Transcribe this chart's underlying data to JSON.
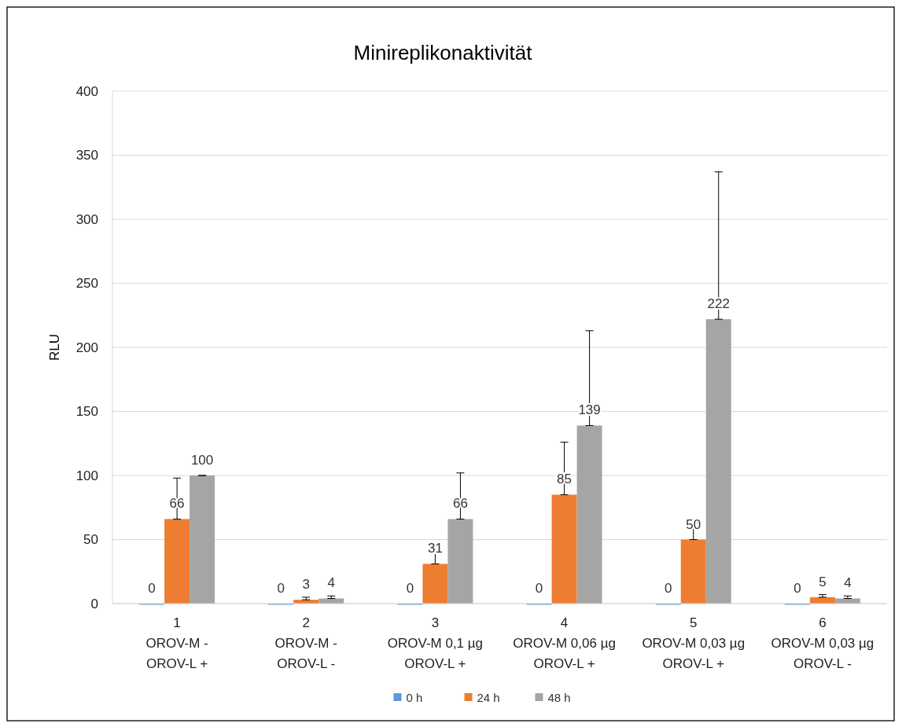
{
  "chart_data": {
    "type": "bar",
    "title": "Minireplikonaktivität",
    "ylabel": "RLU",
    "categories": [
      "1\nOROV-M -\nOROV-L +",
      "2\nOROV-M -\nOROV-L -",
      "3\nOROV-M 0,1 µg\nOROV-L +",
      "4\nOROV-M 0,06 µg\nOROV-L +",
      "5\nOROV-M 0,03 µg\nOROV-L +",
      "6\nOROV-M 0,03 µg\nOROV-L -"
    ],
    "series": [
      {
        "name": "0 h",
        "color": "#5b9bd5",
        "values": [
          0,
          0,
          0,
          0,
          0,
          0
        ]
      },
      {
        "name": "24 h",
        "color": "#ed7d31",
        "values": [
          66,
          3,
          31,
          85,
          50,
          5
        ],
        "errors": [
          [
            66,
            98
          ],
          [
            3,
            5
          ],
          [
            31,
            45
          ],
          [
            85,
            126
          ],
          [
            50,
            63
          ],
          [
            5,
            7
          ]
        ]
      },
      {
        "name": "48 h",
        "color": "#a5a5a5",
        "values": [
          100,
          4,
          66,
          139,
          222,
          4
        ],
        "errors": [
          [
            100,
            100
          ],
          [
            4,
            6
          ],
          [
            66,
            102
          ],
          [
            139,
            213
          ],
          [
            222,
            337
          ],
          [
            4,
            6
          ]
        ]
      }
    ],
    "ylim": [
      0,
      400
    ],
    "yticks": [
      0,
      50,
      100,
      150,
      200,
      250,
      300,
      350,
      400
    ],
    "grid": "y",
    "legend": "bottom",
    "data_labels": true
  }
}
